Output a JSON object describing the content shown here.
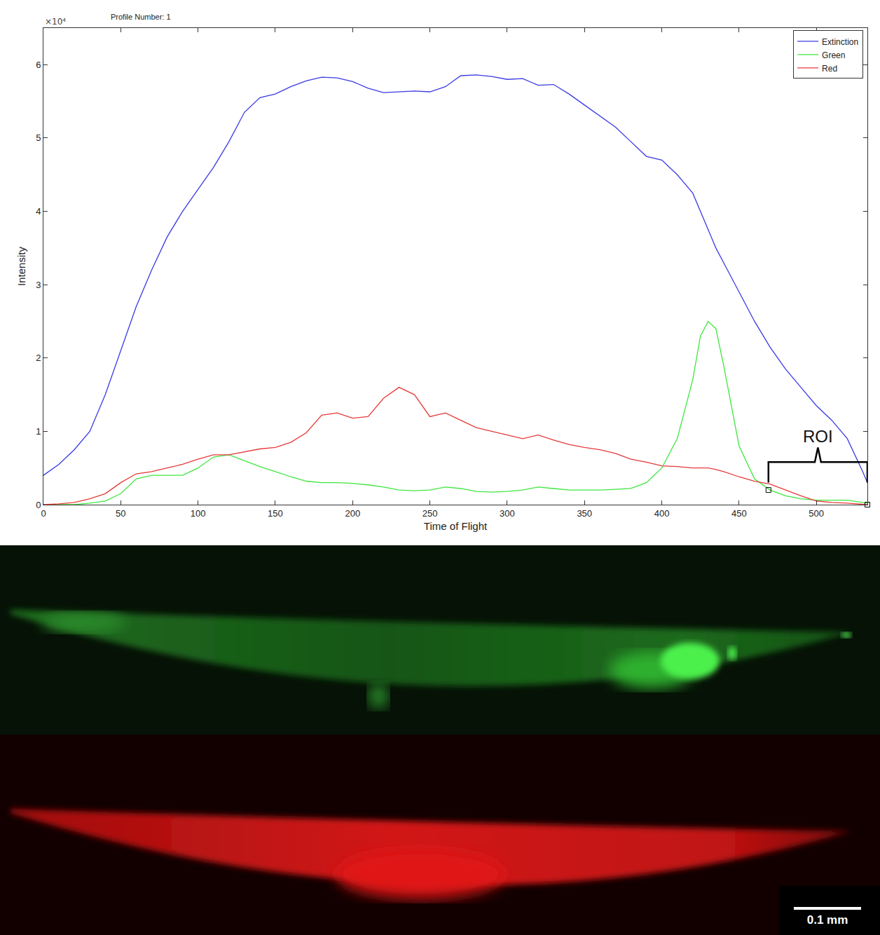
{
  "chart_data": {
    "type": "line",
    "title": "Profile Number: 1",
    "x_label": "Time of Flight",
    "y_label": "Intensity",
    "x": [
      0,
      10,
      20,
      30,
      40,
      50,
      60,
      70,
      80,
      90,
      100,
      110,
      120,
      130,
      140,
      150,
      160,
      170,
      180,
      190,
      200,
      210,
      220,
      230,
      240,
      250,
      260,
      270,
      280,
      290,
      300,
      310,
      320,
      330,
      340,
      350,
      360,
      370,
      380,
      390,
      400,
      410,
      420,
      425,
      430,
      435,
      440,
      450,
      460,
      470,
      480,
      490,
      500,
      510,
      520,
      530,
      533
    ],
    "series": [
      {
        "name": "Extinction",
        "color": "#3a3ae6",
        "values": [
          0.4,
          0.55,
          0.75,
          1.0,
          1.5,
          2.1,
          2.7,
          3.2,
          3.65,
          4.0,
          4.3,
          4.6,
          4.95,
          5.35,
          5.55,
          5.6,
          5.7,
          5.78,
          5.83,
          5.82,
          5.77,
          5.68,
          5.62,
          5.63,
          5.64,
          5.63,
          5.7,
          5.85,
          5.86,
          5.84,
          5.8,
          5.81,
          5.72,
          5.73,
          5.6,
          5.45,
          5.3,
          5.15,
          4.95,
          4.75,
          4.7,
          4.5,
          4.25,
          4.0,
          3.75,
          3.5,
          3.3,
          2.9,
          2.5,
          2.15,
          1.85,
          1.6,
          1.35,
          1.15,
          0.9,
          0.45,
          0.3
        ]
      },
      {
        "name": "Green",
        "color": "#3ee63e",
        "values": [
          0,
          0,
          0,
          0.02,
          0.05,
          0.15,
          0.35,
          0.4,
          0.4,
          0.4,
          0.5,
          0.65,
          0.68,
          0.6,
          0.52,
          0.45,
          0.38,
          0.32,
          0.3,
          0.3,
          0.29,
          0.27,
          0.24,
          0.2,
          0.19,
          0.2,
          0.24,
          0.22,
          0.18,
          0.17,
          0.18,
          0.2,
          0.24,
          0.22,
          0.2,
          0.2,
          0.2,
          0.21,
          0.22,
          0.3,
          0.5,
          0.9,
          1.7,
          2.3,
          2.5,
          2.4,
          1.9,
          0.8,
          0.35,
          0.2,
          0.12,
          0.08,
          0.06,
          0.06,
          0.06,
          0.03,
          0.02
        ]
      },
      {
        "name": "Red",
        "color": "#e63a3a",
        "values": [
          0,
          0.01,
          0.03,
          0.08,
          0.15,
          0.3,
          0.42,
          0.45,
          0.5,
          0.55,
          0.62,
          0.68,
          0.68,
          0.72,
          0.76,
          0.78,
          0.85,
          0.98,
          1.22,
          1.25,
          1.18,
          1.2,
          1.45,
          1.6,
          1.5,
          1.2,
          1.25,
          1.15,
          1.05,
          1.0,
          0.95,
          0.9,
          0.95,
          0.88,
          0.82,
          0.78,
          0.75,
          0.7,
          0.62,
          0.58,
          0.53,
          0.52,
          0.5,
          0.5,
          0.5,
          0.48,
          0.45,
          0.38,
          0.32,
          0.28,
          0.2,
          0.12,
          0.05,
          0.03,
          0.02,
          0.01,
          0
        ]
      }
    ],
    "xlim": [
      0,
      533
    ],
    "xticks": [
      0,
      50,
      100,
      150,
      200,
      250,
      300,
      350,
      400,
      450,
      500
    ],
    "ylim": [
      0,
      6.5
    ],
    "yticks": [
      0,
      1,
      2,
      3,
      4,
      5,
      6
    ],
    "grid": false,
    "legend": "top right",
    "annotations": [
      {
        "text": "×10⁴"
      },
      {
        "text": "ROI",
        "x": [
          469,
          533
        ],
        "y": 0.58,
        "points": [
          [
            469,
            0.2
          ],
          [
            533,
            0
          ]
        ]
      }
    ]
  },
  "micrographs": {
    "scale_bar": "0.1 mm"
  }
}
